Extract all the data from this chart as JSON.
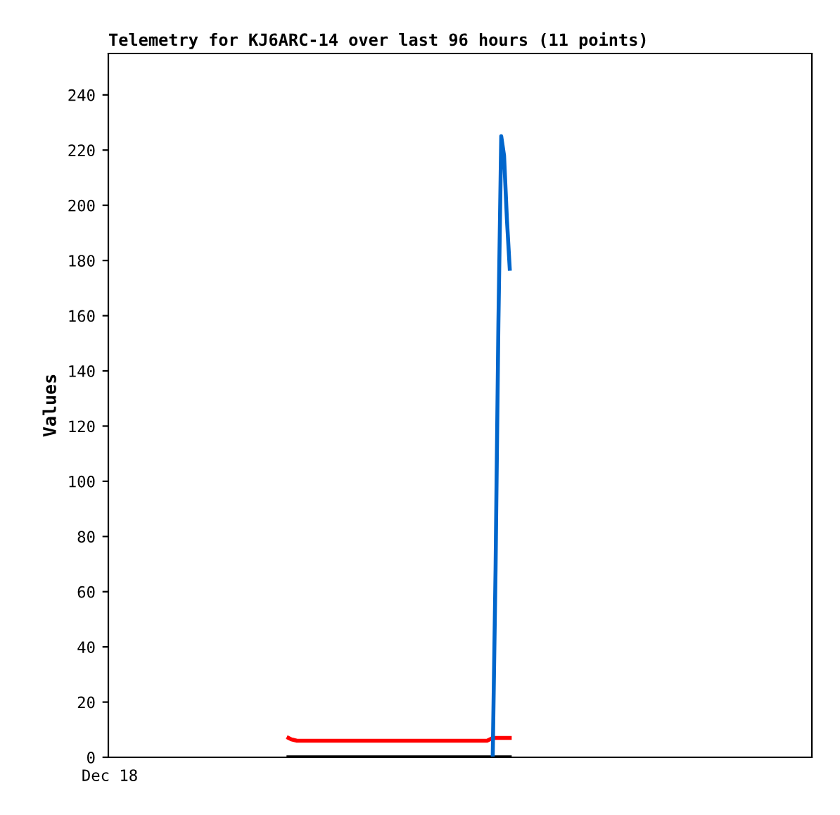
{
  "chart_data": {
    "type": "line",
    "title": "Telemetry for KJ6ARC-14 over last 96 hours (11 points)",
    "ylabel": "Values",
    "categories": [
      "Dec 18",
      null,
      null,
      null,
      null,
      null,
      null,
      null,
      null,
      null,
      null,
      null,
      null,
      null,
      null,
      null,
      null,
      null,
      null,
      null,
      null,
      null,
      null,
      null,
      null,
      null,
      null,
      null,
      null,
      null,
      null,
      null,
      null,
      null,
      null,
      null,
      null,
      null,
      null,
      null,
      null,
      null,
      null,
      null,
      null,
      null,
      null,
      null,
      null,
      null,
      null,
      null,
      null,
      null,
      null,
      null,
      null,
      null,
      null,
      null,
      null,
      null,
      null,
      null,
      null,
      null,
      null,
      null,
      null,
      null,
      null,
      null,
      null,
      null,
      null,
      null,
      null,
      null,
      null,
      null,
      null,
      null,
      null,
      null,
      null,
      null,
      null,
      null,
      null,
      null,
      null,
      null,
      null,
      null,
      null,
      null,
      null,
      null,
      null,
      null,
      null,
      null,
      null,
      null,
      null,
      null,
      null,
      null,
      null,
      null,
      null,
      null,
      null,
      null,
      null,
      null,
      null,
      null,
      null,
      null,
      null,
      null,
      null,
      null,
      null,
      null,
      null,
      null,
      null,
      null,
      null,
      null,
      null,
      null,
      null,
      null,
      null,
      null,
      null,
      null,
      null,
      null,
      null,
      null,
      null,
      null,
      null,
      null,
      null,
      null,
      null,
      null,
      null,
      null,
      null,
      null,
      null,
      null,
      null,
      null,
      null,
      null,
      null,
      null,
      null,
      null,
      null,
      null,
      null,
      null,
      null,
      null,
      null,
      null,
      null,
      null,
      null,
      null,
      null,
      null,
      null,
      null,
      null,
      null,
      null,
      null,
      null,
      null,
      null,
      null,
      null,
      null,
      null,
      null,
      null,
      null,
      null,
      null,
      null,
      null,
      null,
      null,
      null,
      null,
      null,
      null,
      null,
      null,
      null,
      null,
      null,
      null,
      null,
      null,
      null,
      null,
      null,
      null,
      null,
      null,
      null,
      null,
      null,
      null,
      null,
      null,
      null,
      null,
      null,
      null,
      null,
      null,
      null,
      null,
      null,
      null,
      null,
      null,
      null,
      null,
      null,
      null,
      null,
      null,
      null,
      null,
      null,
      null
    ],
    "ylim": [
      0,
      255
    ],
    "yticks": [
      0,
      20,
      40,
      60,
      80,
      100,
      120,
      140,
      160,
      180,
      200,
      220,
      240
    ],
    "grid": false,
    "legend": false,
    "series": [
      {
        "color": "#000000",
        "values": [
          null,
          null,
          null,
          null,
          null,
          null,
          null,
          null,
          null,
          null,
          null,
          null,
          null,
          null,
          null,
          null,
          null,
          null,
          null,
          null,
          null,
          null,
          null,
          null,
          null,
          null,
          null,
          null,
          null,
          null,
          null,
          null,
          null,
          null,
          null,
          null,
          null,
          null,
          null,
          null,
          null,
          null,
          null,
          null,
          null,
          null,
          null,
          null,
          null,
          null,
          null,
          null,
          null,
          null,
          null,
          null,
          null,
          null,
          null,
          null,
          null,
          null,
          null,
          0,
          null,
          null,
          null,
          null,
          null,
          null,
          null,
          null,
          null,
          null,
          null,
          null,
          null,
          null,
          null,
          null,
          null,
          null,
          null,
          null,
          null,
          null,
          null,
          null,
          null,
          null,
          null,
          null,
          null,
          null,
          null,
          null,
          null,
          null,
          null,
          null,
          null,
          null,
          null,
          null,
          null,
          null,
          null,
          null,
          null,
          null,
          null,
          null,
          null,
          null,
          null,
          null,
          null,
          null,
          null,
          null,
          null,
          null,
          null,
          null,
          null,
          null,
          null,
          null,
          null,
          null,
          null,
          null,
          null,
          null,
          null,
          null,
          null,
          null,
          null,
          null,
          null,
          0,
          null,
          null,
          null,
          null,
          null,
          null,
          null,
          null,
          null,
          null,
          null,
          null,
          null,
          null,
          null,
          null,
          null,
          null,
          null,
          null,
          null,
          null,
          null,
          null,
          null,
          null,
          null,
          null,
          null,
          null,
          null,
          null,
          null,
          null,
          null,
          null,
          null,
          null,
          null,
          null,
          null,
          null,
          null,
          null,
          null,
          null,
          null,
          null,
          null,
          null,
          null,
          null,
          null,
          null,
          null,
          null,
          null,
          null,
          null,
          null,
          null,
          null,
          null,
          null,
          null,
          null,
          null,
          null,
          null,
          null,
          null,
          null,
          null,
          null,
          null,
          null,
          null,
          null,
          null,
          null,
          null,
          null,
          null,
          null,
          null,
          null,
          null,
          null,
          null,
          null,
          null,
          null,
          null,
          null,
          null,
          null,
          null,
          null,
          null,
          null,
          null,
          null,
          null,
          null,
          null,
          null
        ]
      },
      {
        "color": "#ff0000",
        "values": [
          null,
          null,
          null,
          null,
          null,
          null,
          null,
          null,
          null,
          null,
          null,
          null,
          null,
          null,
          null,
          null,
          null,
          null,
          null,
          null,
          null,
          null,
          null,
          null,
          null,
          null,
          null,
          null,
          null,
          null,
          null,
          null,
          null,
          null,
          null,
          null,
          null,
          null,
          null,
          null,
          null,
          null,
          null,
          null,
          null,
          null,
          null,
          null,
          null,
          null,
          null,
          null,
          null,
          null,
          null,
          null,
          null,
          null,
          null,
          null,
          null,
          null,
          null,
          7,
          6.5,
          null,
          6,
          null,
          null,
          null,
          null,
          null,
          null,
          null,
          null,
          null,
          null,
          null,
          null,
          null,
          null,
          null,
          null,
          null,
          null,
          null,
          null,
          null,
          null,
          null,
          null,
          null,
          null,
          null,
          null,
          null,
          null,
          null,
          null,
          null,
          null,
          null,
          null,
          null,
          null,
          null,
          null,
          null,
          null,
          null,
          null,
          null,
          null,
          null,
          null,
          null,
          null,
          null,
          null,
          null,
          null,
          null,
          null,
          null,
          null,
          null,
          null,
          null,
          null,
          null,
          null,
          null,
          null,
          6,
          6.5,
          7,
          null,
          null,
          null,
          null,
          null,
          7,
          null,
          null,
          null,
          null,
          null,
          null,
          null,
          null,
          null,
          null,
          null,
          null,
          null,
          null,
          null,
          null,
          null,
          null,
          null,
          null,
          null,
          null,
          null,
          null,
          null,
          null,
          null,
          null,
          null,
          null,
          null,
          null,
          null,
          null,
          null,
          null,
          null,
          null,
          null,
          null,
          null,
          null,
          null,
          null,
          null,
          null,
          null,
          null,
          null,
          null,
          null,
          null,
          null,
          null,
          null,
          null,
          null,
          null,
          null,
          null,
          null,
          null,
          null,
          null,
          null,
          null,
          null,
          null,
          null,
          null,
          null,
          null,
          null,
          null,
          null,
          null,
          null,
          null,
          null,
          null,
          null,
          null,
          null,
          null,
          null,
          null,
          null,
          null,
          null,
          null,
          null,
          null,
          null,
          null,
          null,
          null,
          null,
          null,
          null,
          null,
          null,
          null,
          null,
          null,
          null,
          null
        ]
      },
      {
        "color": "#0066cc",
        "values": [
          null,
          null,
          null,
          null,
          null,
          null,
          null,
          null,
          null,
          null,
          null,
          null,
          null,
          null,
          null,
          null,
          null,
          null,
          null,
          null,
          null,
          null,
          null,
          null,
          null,
          null,
          null,
          null,
          null,
          null,
          null,
          null,
          null,
          null,
          null,
          null,
          null,
          null,
          null,
          null,
          null,
          null,
          null,
          null,
          null,
          null,
          null,
          null,
          null,
          null,
          null,
          null,
          null,
          null,
          null,
          null,
          null,
          null,
          null,
          null,
          null,
          null,
          null,
          null,
          null,
          null,
          null,
          null,
          null,
          null,
          null,
          null,
          null,
          null,
          null,
          null,
          null,
          null,
          null,
          null,
          null,
          null,
          null,
          null,
          null,
          null,
          null,
          null,
          null,
          null,
          null,
          null,
          null,
          null,
          null,
          null,
          null,
          null,
          null,
          null,
          null,
          null,
          null,
          null,
          null,
          null,
          null,
          null,
          null,
          null,
          null,
          null,
          null,
          null,
          null,
          null,
          null,
          null,
          null,
          null,
          null,
          null,
          null,
          null,
          null,
          null,
          null,
          null,
          null,
          null,
          null,
          null,
          null,
          null,
          null,
          0,
          68,
          157,
          225,
          218,
          195,
          177,
          null,
          null,
          null,
          null,
          null,
          null,
          null,
          null,
          null,
          null,
          null,
          null,
          null,
          null,
          null,
          null,
          null,
          null,
          null,
          null,
          null,
          null,
          null,
          null,
          null,
          null,
          null,
          null,
          null,
          null,
          null,
          null,
          null,
          null,
          null,
          null,
          null,
          null,
          null,
          null,
          null,
          null,
          null,
          null,
          null,
          null,
          null,
          null,
          null,
          null,
          null,
          null,
          null,
          null,
          null,
          null,
          null,
          null,
          null,
          null,
          null,
          null,
          null,
          null,
          null,
          null,
          null,
          null,
          null,
          null,
          null,
          null,
          null,
          null,
          null,
          null,
          null,
          null,
          null,
          null,
          null,
          null,
          null,
          null,
          null,
          null,
          null,
          null,
          null,
          null,
          null,
          null,
          null,
          null,
          null,
          null,
          null,
          null,
          null,
          null,
          null,
          null,
          null,
          null,
          null,
          null
        ]
      }
    ]
  }
}
